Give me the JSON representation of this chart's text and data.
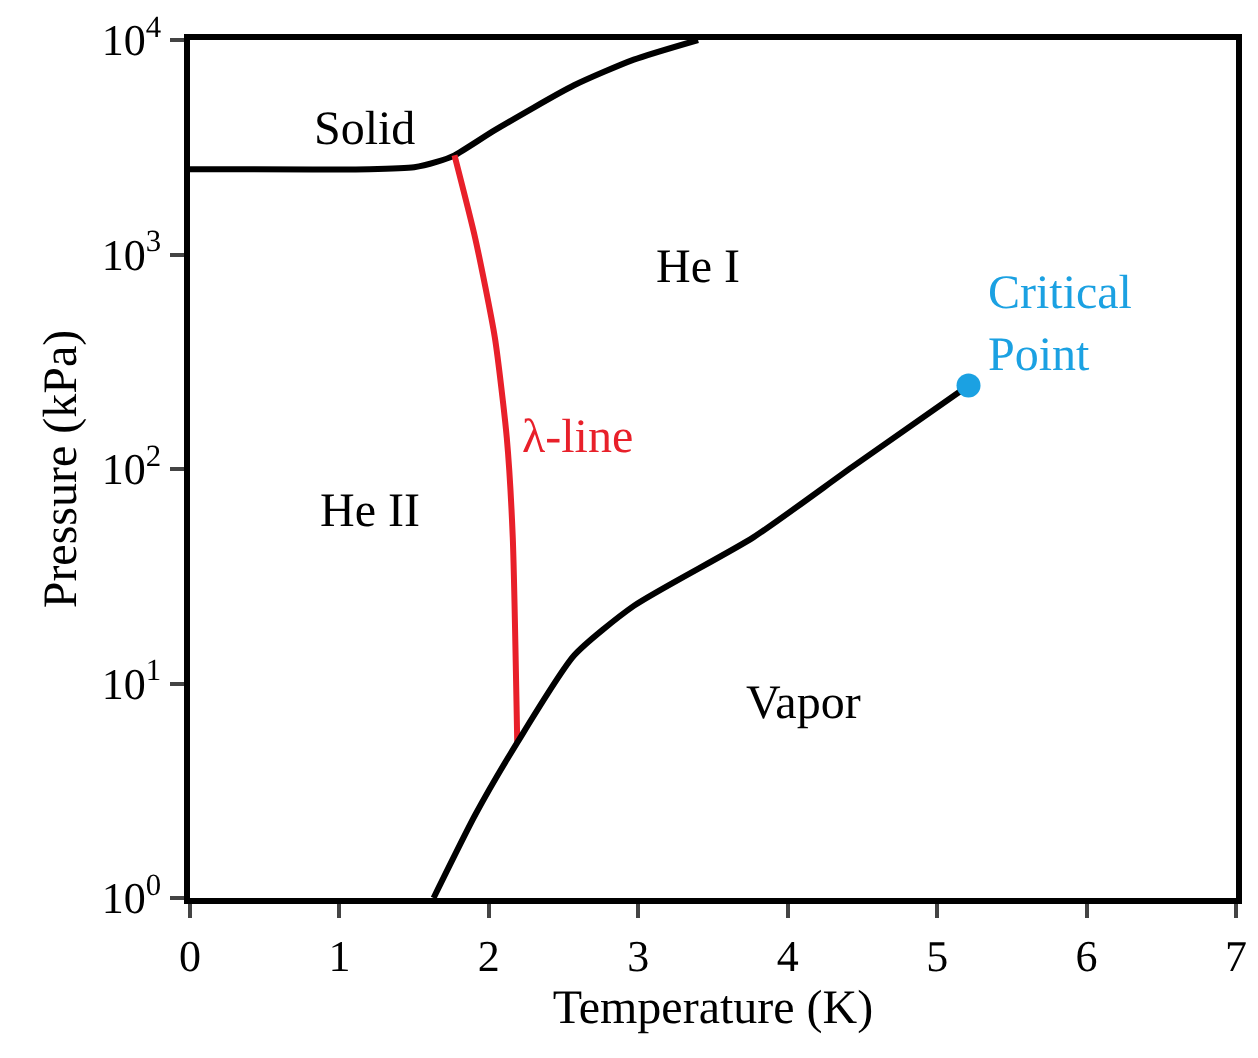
{
  "chart_data": {
    "type": "line",
    "xlabel": "Temperature (K)",
    "ylabel": "Pressure (kPa)",
    "log": "y",
    "xlim": [
      0,
      7
    ],
    "xticks": [
      0,
      1,
      2,
      3,
      4,
      5,
      6,
      7
    ],
    "ylim": [
      1,
      10000
    ],
    "yticks": [
      {
        "value": 1,
        "label": "10$^{0}$"
      },
      {
        "value": 10,
        "label": "10$^{1}$"
      },
      {
        "value": 100,
        "label": "10$^{2}$"
      },
      {
        "value": 1000,
        "label": "10$^{3}$"
      },
      {
        "value": 10000,
        "label": "10$^{4}$"
      }
    ],
    "grid": false,
    "marker": "none",
    "line_style": "solid",
    "series": [
      {
        "color": "#000000",
        "x": [
          0,
          1.2,
          1.5,
          1.65,
          1.77,
          2.04,
          2.57,
          2.97,
          3.4
        ],
        "values": [
          2500,
          2500,
          2550,
          2700,
          2900,
          3800,
          6150,
          8100,
          10000
        ]
      },
      {
        "name": "λ-line",
        "color": "#e8202a",
        "x": [
          1.77,
          1.91,
          2.04,
          2.12,
          2.16,
          2.19
        ],
        "values": [
          2900,
          1180,
          410,
          140,
          48,
          5.3
        ]
      },
      {
        "color": "#000000",
        "x": [
          1.63,
          1.91,
          2.19,
          2.57,
          2.97,
          3.77,
          4.43,
          5.21
        ],
        "values": [
          1,
          2.45,
          5.3,
          13.5,
          23,
          48,
          102,
          245
        ]
      },
      {
        "name": "Critical Point",
        "type": "scatter",
        "marker": "circle",
        "color": "#1ba1e2",
        "x": [
          5.21
        ],
        "values": [
          245
        ]
      }
    ],
    "annotations": [
      "Solid",
      "He I",
      "He II",
      "Vapor"
    ]
  }
}
